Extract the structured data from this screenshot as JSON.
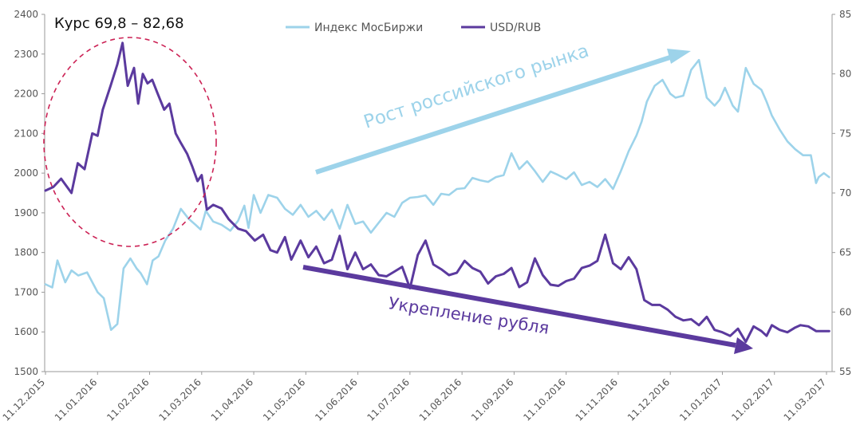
{
  "chart_data": {
    "type": "line",
    "title": "Курс 69,8 – 82,68",
    "legend_position": "top-center",
    "x_tick_labels": [
      "11.12.2015",
      "11.01.2016",
      "11.02.2016",
      "11.03.2016",
      "11.04.2016",
      "11.05.2016",
      "11.06.2016",
      "11.07.2016",
      "11.08.2016",
      "11.09.2016",
      "11.10.2016",
      "11.11.2016",
      "11.12.2016",
      "11.01.2017",
      "11.02.2017",
      "11.03.2017"
    ],
    "y_left": {
      "min": 1500,
      "max": 2400,
      "ticks": [
        "1500",
        "1600",
        "1700",
        "1800",
        "1900",
        "2000",
        "2100",
        "2200",
        "2300",
        "2400"
      ]
    },
    "y_right": {
      "min": 55,
      "max": 85,
      "ticks": [
        "55",
        "60",
        "65",
        "70",
        "75",
        "80",
        "85"
      ]
    },
    "series": [
      {
        "name": "Индекс МосБиржи",
        "axis": "left",
        "color": "#9dd3ea",
        "x_months": [
          0,
          0.13,
          0.23,
          0.38,
          0.5,
          0.63,
          0.8,
          1.0,
          1.12,
          1.26,
          1.38,
          1.5,
          1.63,
          1.75,
          1.83,
          1.95,
          2.06,
          2.17,
          2.3,
          2.45,
          2.6,
          2.75,
          2.88,
          2.98,
          3.08,
          3.22,
          3.38,
          3.55,
          3.7,
          3.82,
          3.9,
          4.0,
          4.13,
          4.28,
          4.45,
          4.6,
          4.75,
          4.9,
          5.05,
          5.2,
          5.35,
          5.5,
          5.65,
          5.8,
          5.95,
          6.1,
          6.25,
          6.4,
          6.55,
          6.7,
          6.85,
          7.0,
          7.15,
          7.3,
          7.45,
          7.6,
          7.75,
          7.9,
          8.05,
          8.2,
          8.35,
          8.5,
          8.65,
          8.8,
          8.95,
          9.1,
          9.25,
          9.4,
          9.55,
          9.7,
          9.85,
          10.0,
          10.15,
          10.3,
          10.45,
          10.6,
          10.75,
          10.9,
          11.05,
          11.2,
          11.35,
          11.45,
          11.55,
          11.7,
          11.85,
          12.0,
          12.1,
          12.25,
          12.4,
          12.55,
          12.7,
          12.85,
          12.95,
          13.05,
          13.2,
          13.3,
          13.45,
          13.6,
          13.75,
          13.85,
          13.95,
          14.1,
          14.25,
          14.4,
          14.55,
          14.7,
          14.8,
          14.85,
          14.95,
          15.05
        ],
        "values": [
          1720,
          1712,
          1780,
          1725,
          1755,
          1742,
          1750,
          1700,
          1685,
          1605,
          1620,
          1760,
          1785,
          1760,
          1748,
          1720,
          1780,
          1790,
          1830,
          1860,
          1910,
          1885,
          1870,
          1858,
          1905,
          1878,
          1870,
          1855,
          1880,
          1918,
          1862,
          1945,
          1900,
          1945,
          1938,
          1910,
          1895,
          1920,
          1890,
          1905,
          1882,
          1908,
          1860,
          1920,
          1872,
          1878,
          1850,
          1875,
          1900,
          1890,
          1925,
          1938,
          1940,
          1944,
          1920,
          1948,
          1945,
          1960,
          1962,
          1988,
          1982,
          1978,
          1990,
          1995,
          2050,
          2010,
          2030,
          2005,
          1978,
          2004,
          1995,
          1985,
          2002,
          1970,
          1978,
          1965,
          1985,
          1960,
          2005,
          2055,
          2095,
          2130,
          2180,
          2220,
          2235,
          2200,
          2190,
          2195,
          2260,
          2285,
          2190,
          2170,
          2185,
          2215,
          2170,
          2155,
          2265,
          2225,
          2210,
          2180,
          2145,
          2110,
          2080,
          2060,
          2045,
          2045,
          1975,
          1990,
          2000,
          1990
        ]
      },
      {
        "name": "USD/RUB",
        "axis": "right",
        "color": "#5b3a9e",
        "x_months": [
          0,
          0.15,
          0.3,
          0.5,
          0.62,
          0.75,
          0.9,
          1.0,
          1.1,
          1.25,
          1.38,
          1.48,
          1.58,
          1.7,
          1.78,
          1.87,
          1.96,
          2.05,
          2.15,
          2.28,
          2.38,
          2.5,
          2.6,
          2.72,
          2.82,
          2.92,
          3.0,
          3.1,
          3.22,
          3.38,
          3.52,
          3.7,
          3.85,
          4.02,
          4.18,
          4.32,
          4.45,
          4.6,
          4.72,
          4.9,
          5.05,
          5.2,
          5.35,
          5.5,
          5.65,
          5.8,
          5.95,
          6.1,
          6.25,
          6.4,
          6.55,
          6.7,
          6.85,
          7.0,
          7.15,
          7.3,
          7.45,
          7.6,
          7.75,
          7.9,
          8.05,
          8.2,
          8.35,
          8.5,
          8.65,
          8.8,
          8.95,
          9.1,
          9.25,
          9.4,
          9.55,
          9.7,
          9.85,
          10.0,
          10.15,
          10.3,
          10.45,
          10.6,
          10.75,
          10.9,
          11.05,
          11.2,
          11.35,
          11.5,
          11.65,
          11.8,
          11.95,
          12.1,
          12.25,
          12.4,
          12.55,
          12.7,
          12.85,
          13.0,
          13.15,
          13.3,
          13.45,
          13.6,
          13.75,
          13.85,
          13.95,
          14.1,
          14.25,
          14.4,
          14.5,
          14.65,
          14.8,
          14.95,
          15.05
        ],
        "values": [
          70.2,
          70.5,
          71.2,
          70.0,
          72.5,
          72.0,
          75.0,
          74.8,
          77.0,
          79.0,
          80.8,
          82.6,
          79.0,
          80.5,
          77.5,
          80.0,
          79.2,
          79.5,
          78.4,
          77.0,
          77.5,
          75.0,
          74.2,
          73.3,
          72.2,
          71.0,
          71.5,
          68.6,
          69.0,
          68.7,
          67.8,
          67.0,
          66.8,
          66.0,
          66.5,
          65.2,
          65.0,
          66.3,
          64.4,
          66.0,
          64.6,
          65.5,
          64.1,
          64.4,
          66.4,
          63.6,
          65.0,
          63.6,
          64.0,
          63.1,
          63.0,
          63.4,
          63.8,
          62.0,
          64.8,
          66.0,
          64.0,
          63.6,
          63.1,
          63.3,
          64.3,
          63.7,
          63.4,
          62.4,
          63.0,
          63.2,
          63.7,
          62.1,
          62.5,
          64.5,
          63.1,
          62.3,
          62.2,
          62.6,
          62.8,
          63.7,
          63.9,
          64.3,
          66.5,
          64.1,
          63.6,
          64.6,
          63.6,
          61.0,
          60.6,
          60.6,
          60.2,
          59.6,
          59.3,
          59.4,
          58.9,
          59.6,
          58.5,
          58.3,
          58.0,
          58.6,
          57.5,
          58.8,
          58.4,
          58.0,
          58.9,
          58.5,
          58.3,
          58.7,
          58.9,
          58.8,
          58.4,
          58.4,
          58.4
        ]
      }
    ],
    "annotations": {
      "rise": "Рост российского рынка",
      "strengthen": "Укрепление рубля"
    },
    "colors": {
      "moex": "#9dd3ea",
      "usd": "#5b3a9e",
      "circle": "#cc2255",
      "axis": "#9a9a9a",
      "tick_text": "#555555"
    }
  }
}
